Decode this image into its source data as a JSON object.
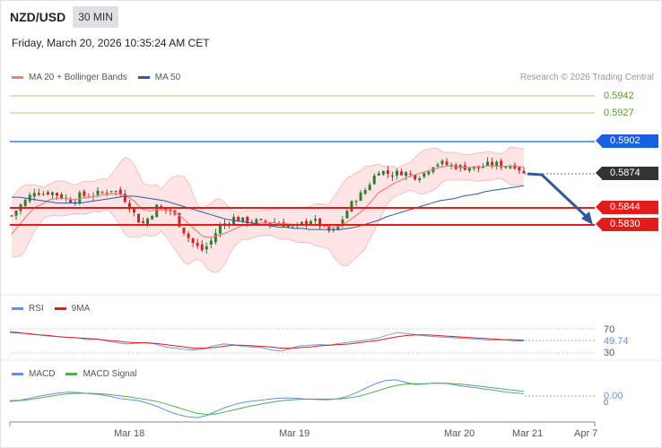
{
  "header": {
    "pair": "NZD/USD",
    "timeframe": "30 MIN",
    "timestamp": "Friday, March 20, 2026 10:35:24 AM CET"
  },
  "legend": {
    "ma20": "MA 20 + Bollinger Bands",
    "ma50": "MA 50",
    "rsi": "RSI",
    "rsi_ma": "9MA",
    "macd": "MACD",
    "macd_signal": "MACD Signal"
  },
  "credit": "Research © 2026 Trading Central",
  "colors": {
    "ma20": "#f08080",
    "ma50": "#2f5a94",
    "bands_fill": "#fde0e0",
    "up": "#2e7d32",
    "down": "#c62828",
    "support": "#e31b1b",
    "resistance_major": "#1a5fe0",
    "resistance_minor": "#8bc34a",
    "current": "#333333",
    "rsi": "#6a8de0",
    "macd": "#6a8de0",
    "macd_signal": "#4caf50"
  },
  "levels": {
    "resistance_2": "0.5942",
    "resistance_1": "0.5927",
    "pivot": "0.5902",
    "last": "0.5874",
    "support_1": "0.5844",
    "support_2": "0.5830"
  },
  "rsi": {
    "value": "49.74",
    "upper": "70",
    "lower": "30"
  },
  "macd": {
    "value": "0.00",
    "zero": "0"
  },
  "x_labels": [
    "Mar 18",
    "Mar 19",
    "Mar 20",
    "Mar 21",
    "Apr 7"
  ],
  "chart_data": {
    "type": "candlestick",
    "ylim": [
      0.5795,
      0.595
    ],
    "candle_count": 114,
    "close_path": [
      0.5838,
      0.5846,
      0.5852,
      0.586,
      0.5857,
      0.5859,
      0.5856,
      0.5853,
      0.5851,
      0.5856,
      0.5855,
      0.5857,
      0.5858,
      0.5861,
      0.5858,
      0.5851,
      0.584,
      0.583,
      0.5837,
      0.5846,
      0.5843,
      0.5842,
      0.583,
      0.582,
      0.5812,
      0.5808,
      0.5815,
      0.5827,
      0.5832,
      0.5836,
      0.5834,
      0.5833,
      0.5833,
      0.5831,
      0.5833,
      0.5832,
      0.583,
      0.5827,
      0.5831,
      0.5835,
      0.5832,
      0.5826,
      0.5823,
      0.5832,
      0.5844,
      0.5853,
      0.5858,
      0.5868,
      0.5878,
      0.5875,
      0.5874,
      0.5876,
      0.5874,
      0.5872,
      0.5875,
      0.5882,
      0.5884,
      0.5882,
      0.5881,
      0.588,
      0.588,
      0.5879,
      0.5882,
      0.5883,
      0.5882,
      0.5881,
      0.5882,
      0.5874
    ],
    "ma20": [
      0.5822,
      0.583,
      0.5838,
      0.5845,
      0.5848,
      0.5852,
      0.5853,
      0.5853,
      0.5852,
      0.5853,
      0.5854,
      0.5855,
      0.5856,
      0.5857,
      0.5857,
      0.5855,
      0.5851,
      0.5844,
      0.5842,
      0.5843,
      0.5843,
      0.5842,
      0.5838,
      0.5832,
      0.5826,
      0.582,
      0.5819,
      0.5821,
      0.5823,
      0.5826,
      0.5829,
      0.583,
      0.5831,
      0.5832,
      0.5832,
      0.5831,
      0.5831,
      0.583,
      0.583,
      0.583,
      0.583,
      0.5829,
      0.5828,
      0.5829,
      0.5833,
      0.5838,
      0.5843,
      0.585,
      0.5858,
      0.5862,
      0.5866,
      0.5869,
      0.5872,
      0.5874,
      0.5876,
      0.5878,
      0.588,
      0.5881,
      0.5881,
      0.588,
      0.588,
      0.588,
      0.5881,
      0.5881,
      0.5881,
      0.5881,
      0.5881,
      0.588
    ],
    "ma50": [
      0.5854,
      0.5854,
      0.5853,
      0.5852,
      0.5851,
      0.585,
      0.5849,
      0.5849,
      0.5849,
      0.5849,
      0.585,
      0.5851,
      0.5852,
      0.5853,
      0.5854,
      0.5855,
      0.5855,
      0.5854,
      0.5853,
      0.5852,
      0.5851,
      0.5849,
      0.5847,
      0.5845,
      0.5843,
      0.5841,
      0.5839,
      0.5837,
      0.5835,
      0.5834,
      0.5833,
      0.5832,
      0.5831,
      0.583,
      0.5829,
      0.5828,
      0.5828,
      0.5827,
      0.5827,
      0.5826,
      0.5826,
      0.5826,
      0.5826,
      0.5826,
      0.5827,
      0.5828,
      0.583,
      0.5832,
      0.5834,
      0.5837,
      0.5839,
      0.5841,
      0.5843,
      0.5845,
      0.5847,
      0.5849,
      0.5851,
      0.5852,
      0.5853,
      0.5855,
      0.5856,
      0.5857,
      0.5859,
      0.586,
      0.5861,
      0.5862,
      0.5863,
      0.5864
    ],
    "forecast": {
      "from": 0.5874,
      "to": 0.583
    },
    "rsi_path": [
      66,
      64,
      61,
      60,
      58,
      57,
      56,
      55,
      52,
      53,
      50,
      47,
      45,
      46,
      47,
      45,
      40,
      38,
      36,
      35,
      37,
      42,
      45,
      44,
      41,
      40,
      39,
      35,
      33,
      38,
      42,
      43,
      44,
      43,
      46,
      48,
      50,
      52,
      55,
      60,
      64,
      62,
      60,
      58,
      57,
      56,
      55,
      54,
      53,
      52,
      51,
      52,
      50,
      50
    ],
    "rsi_ma_path": [
      64,
      63,
      62,
      60,
      59,
      57,
      56,
      55,
      54,
      53,
      51,
      50,
      48,
      47,
      47,
      46,
      44,
      42,
      40,
      38,
      38,
      39,
      41,
      43,
      43,
      42,
      41,
      40,
      38,
      38,
      39,
      40,
      42,
      43,
      44,
      45,
      47,
      49,
      51,
      54,
      57,
      59,
      60,
      60,
      59,
      58,
      57,
      56,
      55,
      54,
      53,
      52,
      52,
      51
    ],
    "macd_path": [
      0.2,
      0.3,
      0.8,
      1.4,
      1.8,
      2.2,
      2.4,
      2.3,
      2.0,
      1.8,
      1.4,
      0.8,
      0.5,
      0.2,
      -0.5,
      -1.4,
      -2.5,
      -3.4,
      -4.0,
      -4.2,
      -3.6,
      -2.4,
      -1.4,
      -0.6,
      -0.1,
      0.2,
      0.5,
      0.8,
      0.9,
      0.8,
      0.6,
      0.5,
      0.4,
      0.6,
      1.2,
      2.2,
      3.4,
      4.6,
      5.4,
      5.6,
      5.0,
      4.4,
      4.5,
      4.8,
      4.7,
      4.3,
      3.9,
      3.6,
      3.2,
      2.9,
      2.5,
      2.2,
      2.0
    ],
    "macd_signal_path": [
      0.0,
      0.2,
      0.5,
      0.9,
      1.3,
      1.7,
      2.0,
      2.1,
      2.1,
      2.0,
      1.8,
      1.5,
      1.2,
      0.8,
      0.4,
      -0.1,
      -0.8,
      -1.6,
      -2.4,
      -3.1,
      -3.4,
      -3.2,
      -2.6,
      -2.0,
      -1.4,
      -0.9,
      -0.4,
      0.0,
      0.3,
      0.5,
      0.6,
      0.6,
      0.6,
      0.6,
      0.8,
      1.2,
      1.8,
      2.6,
      3.4,
      4.1,
      4.5,
      4.6,
      4.6,
      4.7,
      4.7,
      4.6,
      4.4,
      4.1,
      3.8,
      3.5,
      3.2,
      2.9,
      2.6
    ]
  }
}
